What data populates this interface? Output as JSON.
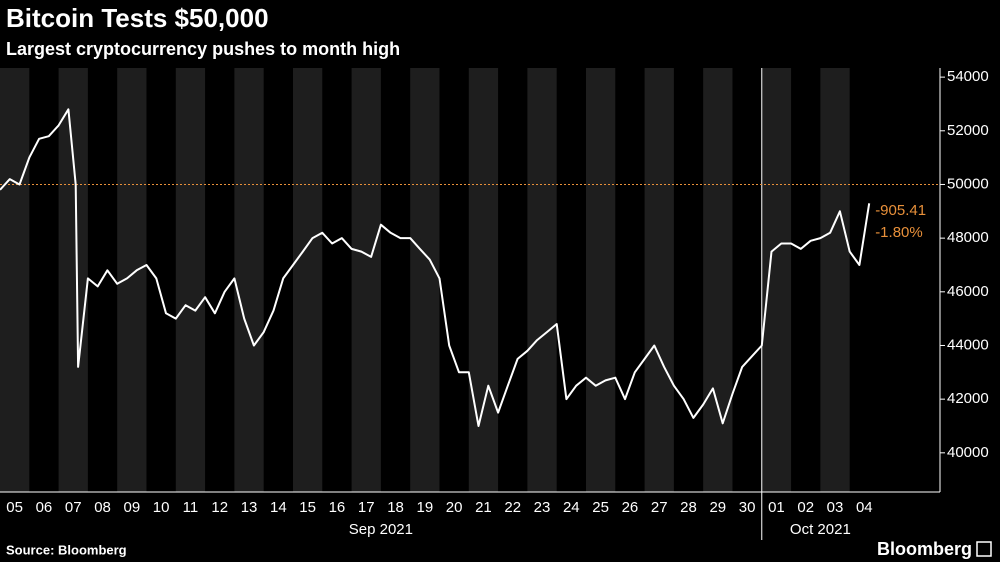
{
  "chart_data": {
    "type": "line",
    "title": "Bitcoin Tests $50,000",
    "subtitle": "Largest cryptocurrency pushes to month high",
    "source": "Source: Bloomberg",
    "brand": "Bloomberg",
    "xlim": [
      "2021-09-05T00:00",
      "2021-10-07T02:00"
    ],
    "ylim": [
      38540,
      54340
    ],
    "yticks": [
      40000,
      42000,
      44000,
      46000,
      48000,
      50000,
      52000,
      54000
    ],
    "xticks": [
      {
        "value": "2021-09-05T12:00",
        "label": "05"
      },
      {
        "value": "2021-09-06T12:00",
        "label": "06"
      },
      {
        "value": "2021-09-07T12:00",
        "label": "07"
      },
      {
        "value": "2021-09-08T12:00",
        "label": "08"
      },
      {
        "value": "2021-09-09T12:00",
        "label": "09"
      },
      {
        "value": "2021-09-10T12:00",
        "label": "10"
      },
      {
        "value": "2021-09-11T12:00",
        "label": "11"
      },
      {
        "value": "2021-09-12T12:00",
        "label": "12"
      },
      {
        "value": "2021-09-13T12:00",
        "label": "13"
      },
      {
        "value": "2021-09-14T12:00",
        "label": "14"
      },
      {
        "value": "2021-09-15T12:00",
        "label": "15"
      },
      {
        "value": "2021-09-16T12:00",
        "label": "16"
      },
      {
        "value": "2021-09-17T12:00",
        "label": "17"
      },
      {
        "value": "2021-09-18T12:00",
        "label": "18"
      },
      {
        "value": "2021-09-19T12:00",
        "label": "19"
      },
      {
        "value": "2021-09-20T12:00",
        "label": "20"
      },
      {
        "value": "2021-09-21T12:00",
        "label": "21"
      },
      {
        "value": "2021-09-22T12:00",
        "label": "22"
      },
      {
        "value": "2021-09-23T12:00",
        "label": "23"
      },
      {
        "value": "2021-09-24T12:00",
        "label": "24"
      },
      {
        "value": "2021-09-25T12:00",
        "label": "25"
      },
      {
        "value": "2021-09-26T12:00",
        "label": "26"
      },
      {
        "value": "2021-09-27T12:00",
        "label": "27"
      },
      {
        "value": "2021-09-28T12:00",
        "label": "28"
      },
      {
        "value": "2021-09-29T12:00",
        "label": "29"
      },
      {
        "value": "2021-09-30T12:00",
        "label": "30"
      },
      {
        "value": "2021-10-01T12:00",
        "label": "01"
      },
      {
        "value": "2021-10-02T12:00",
        "label": "02"
      },
      {
        "value": "2021-10-03T12:00",
        "label": "03"
      },
      {
        "value": "2021-10-04T12:00",
        "label": "04"
      }
    ],
    "month_labels": [
      {
        "value": "2021-09",
        "label": "Sep 2021"
      },
      {
        "value": "2021-10",
        "label": "Oct 2021"
      }
    ],
    "reference_line": {
      "value": 50000,
      "color": "#e8903a"
    },
    "annotations": [
      {
        "label": "-905.41",
        "color": "#e8903a"
      },
      {
        "label": "-1.80%",
        "color": "#e8903a"
      }
    ],
    "x": [
      "2021-09-05T00:00",
      "2021-09-05T08:00",
      "2021-09-05T16:00",
      "2021-09-06T00:00",
      "2021-09-06T08:00",
      "2021-09-06T16:00",
      "2021-09-07T00:00",
      "2021-09-07T08:00",
      "2021-09-07T14:00",
      "2021-09-07T16:00",
      "2021-09-08T00:00",
      "2021-09-08T08:00",
      "2021-09-08T16:00",
      "2021-09-09T00:00",
      "2021-09-09T08:00",
      "2021-09-09T16:00",
      "2021-09-10T00:00",
      "2021-09-10T08:00",
      "2021-09-10T16:00",
      "2021-09-11T00:00",
      "2021-09-11T08:00",
      "2021-09-11T16:00",
      "2021-09-12T00:00",
      "2021-09-12T08:00",
      "2021-09-12T16:00",
      "2021-09-13T00:00",
      "2021-09-13T08:00",
      "2021-09-13T16:00",
      "2021-09-14T00:00",
      "2021-09-14T08:00",
      "2021-09-14T16:00",
      "2021-09-15T00:00",
      "2021-09-15T08:00",
      "2021-09-15T16:00",
      "2021-09-16T00:00",
      "2021-09-16T08:00",
      "2021-09-16T16:00",
      "2021-09-17T00:00",
      "2021-09-17T08:00",
      "2021-09-17T16:00",
      "2021-09-18T00:00",
      "2021-09-18T08:00",
      "2021-09-18T16:00",
      "2021-09-19T00:00",
      "2021-09-19T08:00",
      "2021-09-19T16:00",
      "2021-09-20T00:00",
      "2021-09-20T08:00",
      "2021-09-20T16:00",
      "2021-09-21T00:00",
      "2021-09-21T08:00",
      "2021-09-21T16:00",
      "2021-09-22T00:00",
      "2021-09-22T08:00",
      "2021-09-22T16:00",
      "2021-09-23T00:00",
      "2021-09-23T08:00",
      "2021-09-23T16:00",
      "2021-09-24T00:00",
      "2021-09-24T08:00",
      "2021-09-24T16:00",
      "2021-09-25T00:00",
      "2021-09-25T08:00",
      "2021-09-25T16:00",
      "2021-09-26T00:00",
      "2021-09-26T08:00",
      "2021-09-26T16:00",
      "2021-09-27T00:00",
      "2021-09-27T08:00",
      "2021-09-27T16:00",
      "2021-09-28T00:00",
      "2021-09-28T08:00",
      "2021-09-28T16:00",
      "2021-09-29T00:00",
      "2021-09-29T08:00",
      "2021-09-29T16:00",
      "2021-09-30T00:00",
      "2021-09-30T08:00",
      "2021-09-30T16:00",
      "2021-10-01T00:00",
      "2021-10-01T08:00",
      "2021-10-01T16:00",
      "2021-10-02T00:00",
      "2021-10-02T08:00",
      "2021-10-02T16:00",
      "2021-10-03T00:00",
      "2021-10-03T08:00",
      "2021-10-03T16:00",
      "2021-10-04T00:00",
      "2021-10-04T08:00",
      "2021-10-04T16:00"
    ],
    "series": [
      {
        "name": "Bitcoin",
        "color": "#ffffff",
        "values": [
          49800,
          50200,
          50000,
          51000,
          51700,
          51800,
          52200,
          52800,
          50000,
          43200,
          46500,
          46200,
          46800,
          46300,
          46500,
          46800,
          47000,
          46500,
          45200,
          45000,
          45500,
          45300,
          45800,
          45200,
          46000,
          46500,
          45000,
          44000,
          44500,
          45300,
          46500,
          47000,
          47500,
          48000,
          48200,
          47800,
          48000,
          47600,
          47500,
          47300,
          48500,
          48200,
          48000,
          48000,
          47600,
          47200,
          46500,
          44000,
          43000,
          43000,
          41000,
          42500,
          41500,
          42500,
          43500,
          43800,
          44200,
          44500,
          44800,
          42000,
          42500,
          42800,
          42500,
          42700,
          42800,
          42000,
          43000,
          43500,
          44000,
          43200,
          42500,
          42000,
          41300,
          41800,
          42400,
          41100,
          42200,
          43200,
          43600,
          44000,
          47500,
          47800,
          47800,
          47600,
          47900,
          48000,
          48200,
          49000,
          47500,
          47000,
          49300
        ]
      }
    ]
  }
}
